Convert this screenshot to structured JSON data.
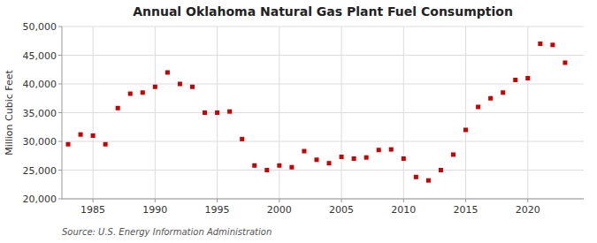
{
  "chart_data": {
    "type": "scatter",
    "title": "Annual Oklahoma Natural Gas Plant Fuel Consumption",
    "ylabel": "Million Cubic Feet",
    "source": "Source: U.S. Energy Information Administration",
    "x": [
      1983,
      1984,
      1985,
      1986,
      1987,
      1988,
      1989,
      1990,
      1991,
      1992,
      1993,
      1994,
      1995,
      1996,
      1997,
      1998,
      1999,
      2000,
      2001,
      2002,
      2003,
      2004,
      2005,
      2006,
      2007,
      2008,
      2009,
      2010,
      2011,
      2012,
      2013,
      2014,
      2015,
      2016,
      2017,
      2018,
      2019,
      2020,
      2021,
      2022,
      2023
    ],
    "values": [
      29500,
      31200,
      31000,
      29500,
      35800,
      38300,
      38500,
      39500,
      42000,
      40000,
      39500,
      35000,
      35000,
      35200,
      30400,
      25800,
      25000,
      25800,
      25500,
      28300,
      26800,
      26200,
      27300,
      27000,
      27200,
      28500,
      28600,
      27000,
      23800,
      23200,
      25000,
      27700,
      32000,
      36000,
      37500,
      38500,
      40700,
      41000,
      47000,
      46800,
      43700
    ],
    "color": "#cc0000",
    "marker": "square",
    "xlim": [
      1982.5,
      2024.5
    ],
    "ylim": [
      20000,
      50000
    ],
    "xticks": [
      1985,
      1990,
      1995,
      2000,
      2005,
      2010,
      2015,
      2020
    ],
    "yticks": [
      {
        "value": 20000,
        "label": "20,000"
      },
      {
        "value": 25000,
        "label": "25,000"
      },
      {
        "value": 30000,
        "label": "30,000"
      },
      {
        "value": 35000,
        "label": "35,000"
      },
      {
        "value": 40000,
        "label": "40,000"
      },
      {
        "value": 45000,
        "label": "45,000"
      },
      {
        "value": 50000,
        "label": "50,000"
      }
    ],
    "grid": true
  }
}
